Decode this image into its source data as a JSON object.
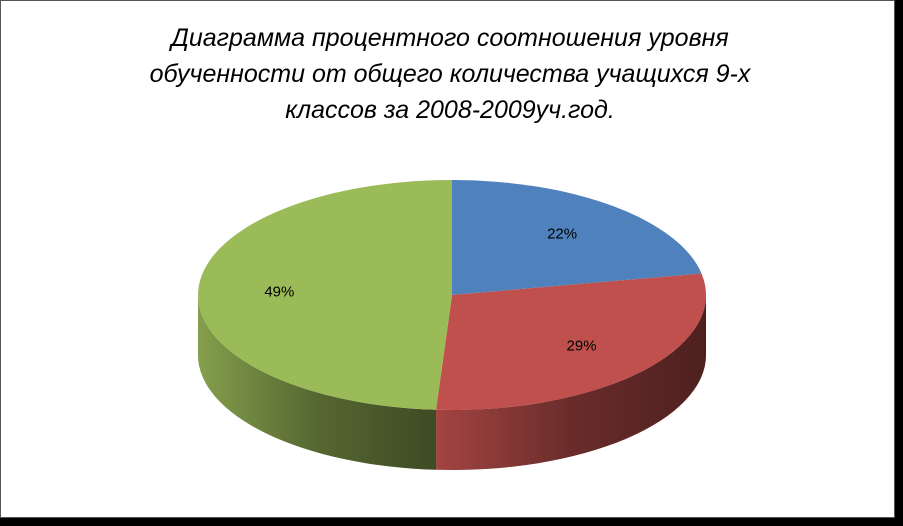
{
  "chart_data": {
    "type": "pie3d",
    "title": "Диаграмма процентного соотношения уровня обученности от общего количества учащихся 9-х классов за 2008-2009уч.год.",
    "values": [
      22,
      29,
      49
    ],
    "value_labels": [
      "22%",
      "29%",
      "49%"
    ],
    "colors": [
      "#4f81bd",
      "#c0504d",
      "#9bbb59"
    ]
  }
}
